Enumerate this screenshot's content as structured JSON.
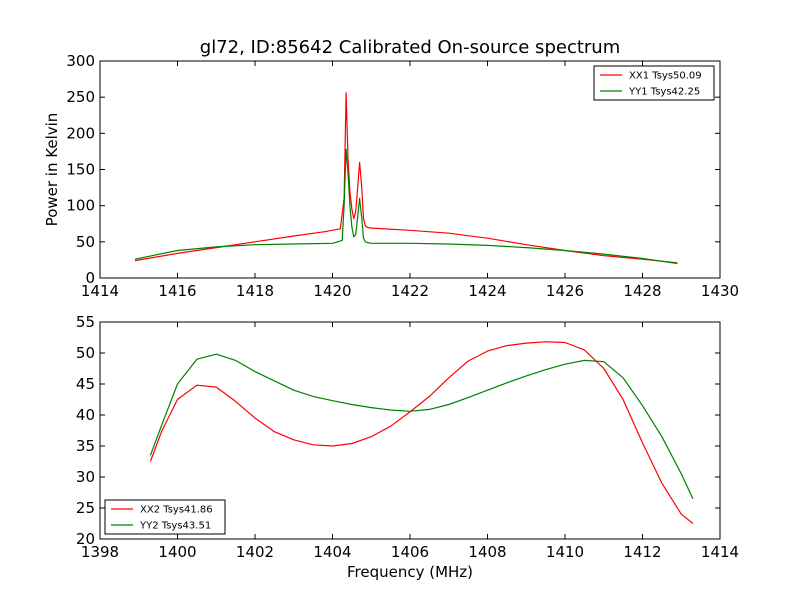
{
  "chart_data": [
    {
      "type": "line",
      "title": "gl72, ID:85642 Calibrated On-source spectrum",
      "xlabel": "",
      "ylabel": "Power in Kelvin",
      "xlim": [
        1414,
        1430
      ],
      "ylim": [
        0,
        300
      ],
      "xticks": [
        "1414",
        "1416",
        "1418",
        "1420",
        "1422",
        "1424",
        "1426",
        "1428",
        "1430"
      ],
      "yticks": [
        "0",
        "50",
        "100",
        "150",
        "200",
        "250",
        "300"
      ],
      "grid": false,
      "legend_position": "top-right",
      "series": [
        {
          "name": "XX1 Tsys50.09",
          "color": "#ff0000",
          "x": [
            1414.9,
            1416,
            1417,
            1418,
            1419,
            1419.8,
            1420.2,
            1420.3,
            1420.35,
            1420.4,
            1420.45,
            1420.5,
            1420.55,
            1420.6,
            1420.65,
            1420.7,
            1420.75,
            1420.8,
            1420.85,
            1420.9,
            1421,
            1422,
            1423,
            1424,
            1425,
            1426,
            1427,
            1428,
            1428.9
          ],
          "values": [
            24,
            34,
            42,
            50,
            58,
            64,
            68,
            110,
            256,
            165,
            120,
            95,
            82,
            92,
            125,
            160,
            128,
            82,
            72,
            70,
            69,
            66,
            62,
            55,
            46,
            38,
            31,
            26,
            21
          ]
        },
        {
          "name": "YY1 Tsys42.25",
          "color": "#008000",
          "x": [
            1414.9,
            1416,
            1417,
            1418,
            1419,
            1420,
            1420.25,
            1420.3,
            1420.35,
            1420.4,
            1420.45,
            1420.5,
            1420.55,
            1420.6,
            1420.65,
            1420.7,
            1420.75,
            1420.8,
            1420.85,
            1420.9,
            1421,
            1422,
            1423,
            1424,
            1425,
            1426,
            1427,
            1428,
            1428.9
          ],
          "values": [
            26,
            38,
            43,
            46,
            47,
            48,
            52,
            100,
            178,
            145,
            100,
            70,
            57,
            60,
            85,
            110,
            85,
            55,
            50,
            49,
            48,
            48,
            47,
            45,
            42,
            38,
            33,
            27,
            20
          ]
        }
      ]
    },
    {
      "type": "line",
      "title": "",
      "xlabel": "Frequency (MHz)",
      "ylabel": "",
      "xlim": [
        1398,
        1414
      ],
      "ylim": [
        20,
        55
      ],
      "xticks": [
        "1398",
        "1400",
        "1402",
        "1404",
        "1406",
        "1408",
        "1410",
        "1412",
        "1414"
      ],
      "yticks": [
        "20",
        "25",
        "30",
        "35",
        "40",
        "45",
        "50",
        "55"
      ],
      "grid": false,
      "legend_position": "bottom-left",
      "series": [
        {
          "name": "XX2 Tsys41.86",
          "color": "#ff0000",
          "x": [
            1399.3,
            1399.6,
            1400,
            1400.5,
            1401,
            1401.5,
            1402,
            1402.5,
            1403,
            1403.5,
            1404,
            1404.5,
            1405,
            1405.5,
            1406,
            1406.5,
            1407,
            1407.5,
            1408,
            1408.5,
            1409,
            1409.5,
            1410,
            1410.5,
            1411,
            1411.5,
            1412,
            1412.5,
            1413,
            1413.3
          ],
          "values": [
            32.5,
            37.5,
            42.5,
            44.8,
            44.5,
            42.2,
            39.5,
            37.3,
            36,
            35.2,
            35,
            35.4,
            36.5,
            38.2,
            40.5,
            43,
            46,
            48.7,
            50.3,
            51.2,
            51.6,
            51.8,
            51.7,
            50.5,
            47.5,
            42.5,
            35.5,
            29,
            24,
            22.5
          ]
        },
        {
          "name": "YY2 Tsys43.51",
          "color": "#008000",
          "x": [
            1399.3,
            1399.6,
            1400,
            1400.5,
            1401,
            1401.5,
            1402,
            1402.5,
            1403,
            1403.5,
            1404,
            1404.5,
            1405,
            1405.5,
            1406,
            1406.5,
            1407,
            1407.5,
            1408,
            1408.5,
            1409,
            1409.5,
            1410,
            1410.5,
            1411,
            1411.5,
            1412,
            1412.5,
            1413,
            1413.3
          ],
          "values": [
            33.5,
            38.5,
            45,
            49,
            49.8,
            48.8,
            47,
            45.5,
            44,
            43,
            42.3,
            41.7,
            41.2,
            40.8,
            40.6,
            40.9,
            41.7,
            42.8,
            44,
            45.2,
            46.3,
            47.3,
            48.2,
            48.8,
            48.6,
            46,
            41.5,
            36.5,
            30.5,
            26.5
          ]
        }
      ]
    }
  ]
}
